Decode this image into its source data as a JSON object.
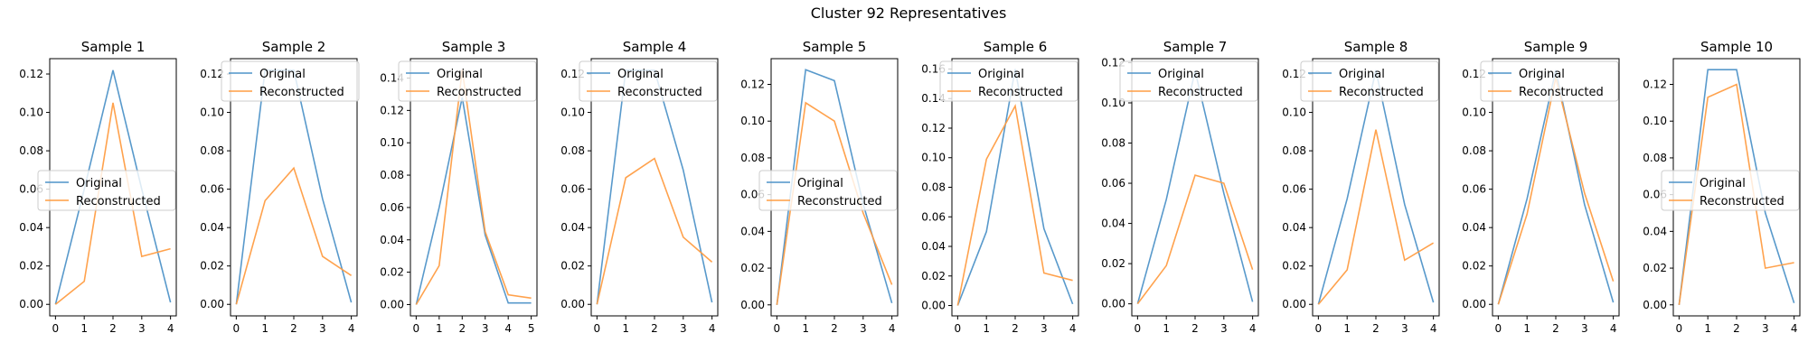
{
  "figure": {
    "suptitle": "Cluster 92 Representatives",
    "legend_labels": [
      "Original",
      "Reconstructed"
    ],
    "colors": {
      "original": "#4f94c8",
      "reconstructed": "#ff9d43",
      "axes": "#000000"
    }
  },
  "chart_data": [
    {
      "type": "line",
      "title": "Sample 1",
      "ylim": [
        -0.006,
        0.128
      ],
      "yticks": [
        0.0,
        0.02,
        0.04,
        0.06,
        0.08,
        0.1,
        0.12
      ],
      "ytick_labels": [
        "0.00",
        "0.02",
        "0.04",
        "0.06",
        "0.08",
        "0.10",
        "0.12"
      ],
      "xlim": [
        -0.2,
        4.2
      ],
      "xticks": [
        0,
        1,
        2,
        3,
        4
      ],
      "legend_loc": "center-left",
      "series": [
        {
          "name": "Original",
          "x": [
            0,
            1,
            2,
            3,
            4
          ],
          "y": [
            0.0,
            0.06,
            0.122,
            0.06,
            0.001
          ]
        },
        {
          "name": "Reconstructed",
          "x": [
            0,
            1,
            2,
            3,
            4
          ],
          "y": [
            0.0,
            0.012,
            0.105,
            0.025,
            0.029
          ]
        }
      ]
    },
    {
      "type": "line",
      "title": "Sample 2",
      "ylim": [
        -0.006,
        0.128
      ],
      "yticks": [
        0.0,
        0.02,
        0.04,
        0.06,
        0.08,
        0.1,
        0.12
      ],
      "ytick_labels": [
        "0.00",
        "0.02",
        "0.04",
        "0.06",
        "0.08",
        "0.10",
        "0.12"
      ],
      "xlim": [
        -0.2,
        4.2
      ],
      "xticks": [
        0,
        1,
        2,
        3,
        4
      ],
      "legend_loc": "top-center",
      "series": [
        {
          "name": "Original",
          "x": [
            0,
            1,
            2,
            3,
            4
          ],
          "y": [
            0.0,
            0.122,
            0.122,
            0.055,
            0.001
          ]
        },
        {
          "name": "Reconstructed",
          "x": [
            0,
            1,
            2,
            3,
            4
          ],
          "y": [
            0.0,
            0.054,
            0.071,
            0.025,
            0.015
          ]
        }
      ]
    },
    {
      "type": "line",
      "title": "Sample 3",
      "ylim": [
        -0.007,
        0.152
      ],
      "yticks": [
        0.0,
        0.02,
        0.04,
        0.06,
        0.08,
        0.1,
        0.12,
        0.14
      ],
      "ytick_labels": [
        "0.00",
        "0.02",
        "0.04",
        "0.06",
        "0.08",
        "0.10",
        "0.12",
        "0.14"
      ],
      "xlim": [
        -0.25,
        5.25
      ],
      "xticks": [
        0,
        1,
        2,
        3,
        4,
        5
      ],
      "legend_loc": "top-left",
      "series": [
        {
          "name": "Original",
          "x": [
            0,
            1,
            2,
            3,
            4,
            5
          ],
          "y": [
            0.0,
            0.06,
            0.128,
            0.043,
            0.001,
            0.001
          ]
        },
        {
          "name": "Reconstructed",
          "x": [
            0,
            1,
            2,
            3,
            4,
            5
          ],
          "y": [
            0.0,
            0.024,
            0.145,
            0.045,
            0.006,
            0.004
          ]
        }
      ]
    },
    {
      "type": "line",
      "title": "Sample 4",
      "ylim": [
        -0.006,
        0.128
      ],
      "yticks": [
        0.0,
        0.02,
        0.04,
        0.06,
        0.08,
        0.1,
        0.12
      ],
      "ytick_labels": [
        "0.00",
        "0.02",
        "0.04",
        "0.06",
        "0.08",
        "0.10",
        "0.12"
      ],
      "xlim": [
        -0.2,
        4.2
      ],
      "xticks": [
        0,
        1,
        2,
        3,
        4
      ],
      "legend_loc": "top-left",
      "series": [
        {
          "name": "Original",
          "x": [
            0,
            1,
            2,
            3,
            4
          ],
          "y": [
            0.0,
            0.122,
            0.122,
            0.07,
            0.001
          ]
        },
        {
          "name": "Reconstructed",
          "x": [
            0,
            1,
            2,
            3,
            4
          ],
          "y": [
            0.0,
            0.066,
            0.076,
            0.035,
            0.022
          ]
        }
      ]
    },
    {
      "type": "line",
      "title": "Sample 5",
      "ylim": [
        -0.006,
        0.134
      ],
      "yticks": [
        0.0,
        0.02,
        0.04,
        0.06,
        0.08,
        0.1,
        0.12
      ],
      "ytick_labels": [
        "0.00",
        "0.02",
        "0.04",
        "0.06",
        "0.08",
        "0.10",
        "0.12"
      ],
      "xlim": [
        -0.2,
        4.2
      ],
      "xticks": [
        0,
        1,
        2,
        3,
        4
      ],
      "legend_loc": "center-left",
      "series": [
        {
          "name": "Original",
          "x": [
            0,
            1,
            2,
            3,
            4
          ],
          "y": [
            0.0,
            0.128,
            0.122,
            0.055,
            0.001
          ]
        },
        {
          "name": "Reconstructed",
          "x": [
            0,
            1,
            2,
            3,
            4
          ],
          "y": [
            0.0,
            0.11,
            0.1,
            0.05,
            0.011
          ]
        }
      ]
    },
    {
      "type": "line",
      "title": "Sample 6",
      "ylim": [
        -0.007,
        0.167
      ],
      "yticks": [
        0.0,
        0.02,
        0.04,
        0.06,
        0.08,
        0.1,
        0.12,
        0.14,
        0.16
      ],
      "ytick_labels": [
        "0.00",
        "0.02",
        "0.04",
        "0.06",
        "0.08",
        "0.10",
        "0.12",
        "0.14",
        "0.16"
      ],
      "xlim": [
        -0.2,
        4.2
      ],
      "xticks": [
        0,
        1,
        2,
        3,
        4
      ],
      "legend_loc": "top-left",
      "series": [
        {
          "name": "Original",
          "x": [
            0,
            1,
            2,
            3,
            4
          ],
          "y": [
            0.0,
            0.05,
            0.16,
            0.052,
            0.001
          ]
        },
        {
          "name": "Reconstructed",
          "x": [
            0,
            1,
            2,
            3,
            4
          ],
          "y": [
            0.0,
            0.099,
            0.135,
            0.022,
            0.017
          ]
        }
      ]
    },
    {
      "type": "line",
      "title": "Sample 7",
      "ylim": [
        -0.006,
        0.122
      ],
      "yticks": [
        0.0,
        0.02,
        0.04,
        0.06,
        0.08,
        0.1,
        0.12
      ],
      "ytick_labels": [
        "0.00",
        "0.02",
        "0.04",
        "0.06",
        "0.08",
        "0.10",
        "0.12"
      ],
      "xlim": [
        -0.2,
        4.2
      ],
      "xticks": [
        0,
        1,
        2,
        3,
        4
      ],
      "legend_loc": "top-left",
      "series": [
        {
          "name": "Original",
          "x": [
            0,
            1,
            2,
            3,
            4
          ],
          "y": [
            0.0,
            0.052,
            0.116,
            0.055,
            0.001
          ]
        },
        {
          "name": "Reconstructed",
          "x": [
            0,
            1,
            2,
            3,
            4
          ],
          "y": [
            0.0,
            0.019,
            0.064,
            0.06,
            0.017
          ]
        }
      ]
    },
    {
      "type": "line",
      "title": "Sample 8",
      "ylim": [
        -0.006,
        0.128
      ],
      "yticks": [
        0.0,
        0.02,
        0.04,
        0.06,
        0.08,
        0.1,
        0.12
      ],
      "ytick_labels": [
        "0.00",
        "0.02",
        "0.04",
        "0.06",
        "0.08",
        "0.10",
        "0.12"
      ],
      "xlim": [
        -0.2,
        4.2
      ],
      "xticks": [
        0,
        1,
        2,
        3,
        4
      ],
      "legend_loc": "top-left",
      "series": [
        {
          "name": "Original",
          "x": [
            0,
            1,
            2,
            3,
            4
          ],
          "y": [
            0.0,
            0.055,
            0.122,
            0.052,
            0.001
          ]
        },
        {
          "name": "Reconstructed",
          "x": [
            0,
            1,
            2,
            3,
            4
          ],
          "y": [
            0.0,
            0.018,
            0.091,
            0.023,
            0.032
          ]
        }
      ]
    },
    {
      "type": "line",
      "title": "Sample 9",
      "ylim": [
        -0.006,
        0.128
      ],
      "yticks": [
        0.0,
        0.02,
        0.04,
        0.06,
        0.08,
        0.1,
        0.12
      ],
      "ytick_labels": [
        "0.00",
        "0.02",
        "0.04",
        "0.06",
        "0.08",
        "0.10",
        "0.12"
      ],
      "xlim": [
        -0.2,
        4.2
      ],
      "xticks": [
        0,
        1,
        2,
        3,
        4
      ],
      "legend_loc": "top-left",
      "series": [
        {
          "name": "Original",
          "x": [
            0,
            1,
            2,
            3,
            4
          ],
          "y": [
            0.0,
            0.055,
            0.122,
            0.052,
            0.001
          ]
        },
        {
          "name": "Reconstructed",
          "x": [
            0,
            1,
            2,
            3,
            4
          ],
          "y": [
            0.0,
            0.047,
            0.118,
            0.058,
            0.012
          ]
        }
      ]
    },
    {
      "type": "line",
      "title": "Sample 10",
      "ylim": [
        -0.006,
        0.134
      ],
      "yticks": [
        0.0,
        0.02,
        0.04,
        0.06,
        0.08,
        0.1,
        0.12
      ],
      "ytick_labels": [
        "0.00",
        "0.02",
        "0.04",
        "0.06",
        "0.08",
        "0.10",
        "0.12"
      ],
      "xlim": [
        -0.2,
        4.2
      ],
      "xticks": [
        0,
        1,
        2,
        3,
        4
      ],
      "legend_loc": "center-left",
      "series": [
        {
          "name": "Original",
          "x": [
            0,
            1,
            2,
            3,
            4
          ],
          "y": [
            0.0,
            0.128,
            0.128,
            0.05,
            0.001
          ]
        },
        {
          "name": "Reconstructed",
          "x": [
            0,
            1,
            2,
            3,
            4
          ],
          "y": [
            0.0,
            0.113,
            0.12,
            0.02,
            0.023
          ]
        }
      ]
    }
  ]
}
